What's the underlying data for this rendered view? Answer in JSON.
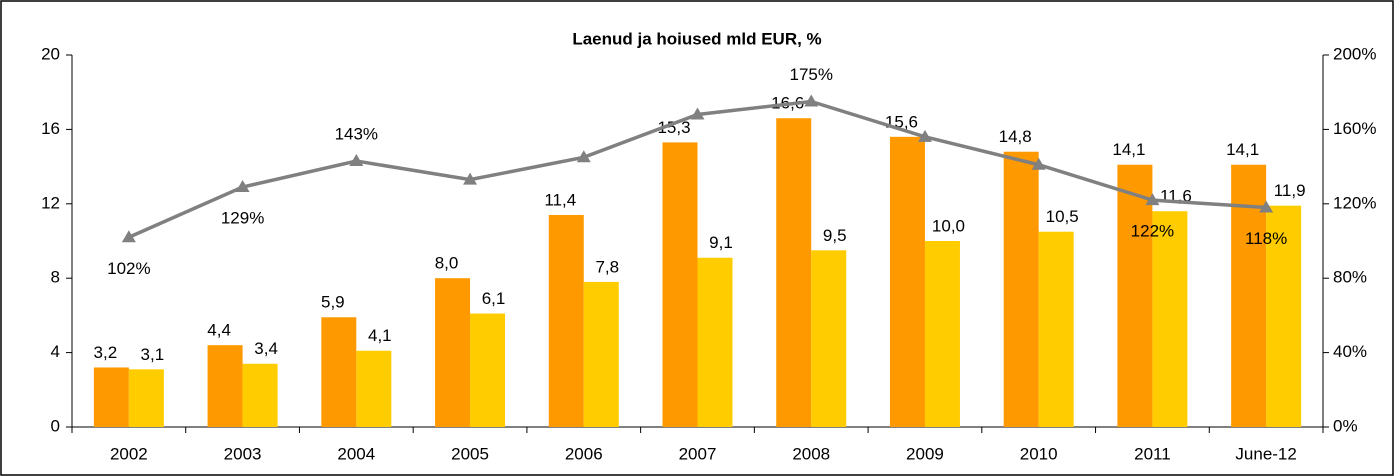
{
  "chart_data": {
    "type": "bar-line",
    "title": "Laenud ja hoiused mld EUR, %",
    "categories": [
      "2002",
      "2003",
      "2004",
      "2005",
      "2006",
      "2007",
      "2008",
      "2009",
      "2010",
      "2011",
      "June-12"
    ],
    "series": [
      {
        "type": "bar",
        "color": "#ff9900",
        "values": [
          3.2,
          4.4,
          5.9,
          8.0,
          11.4,
          15.3,
          16.6,
          15.6,
          14.8,
          14.1,
          14.1
        ],
        "value_labels": [
          "3,2",
          "4,4",
          "5,9",
          "8,0",
          "11,4",
          "15,3",
          "16,6",
          "15,6",
          "14,8",
          "14,1",
          "14,1"
        ]
      },
      {
        "type": "bar",
        "color": "#ffcc00",
        "values": [
          3.1,
          3.4,
          4.1,
          6.1,
          7.8,
          9.1,
          9.5,
          10.0,
          10.5,
          11.6,
          11.9
        ],
        "value_labels": [
          "3,1",
          "3,4",
          "4,1",
          "6,1",
          "7,8",
          "9,1",
          "9,5",
          "10,0",
          "10,5",
          "11,6",
          "11,9"
        ]
      },
      {
        "type": "line",
        "axis": "y2",
        "color": "#808080",
        "values": [
          102,
          129,
          143,
          133,
          145,
          168,
          175,
          156,
          141,
          122,
          118
        ],
        "value_labels": [
          "102%",
          "129%",
          "143%",
          null,
          null,
          null,
          "175%",
          null,
          null,
          "122%",
          "118%"
        ]
      }
    ],
    "ylim": [
      0,
      20
    ],
    "yticks": [
      0,
      4,
      8,
      12,
      16,
      20
    ],
    "y2lim": [
      0,
      200
    ],
    "y2ticks": [
      {
        "value": 0,
        "label": "0%"
      },
      {
        "value": 40,
        "label": "40%"
      },
      {
        "value": 80,
        "label": "80%"
      },
      {
        "value": 120,
        "label": "120%"
      },
      {
        "value": 160,
        "label": "160%"
      },
      {
        "value": 200,
        "label": "200%"
      }
    ]
  }
}
